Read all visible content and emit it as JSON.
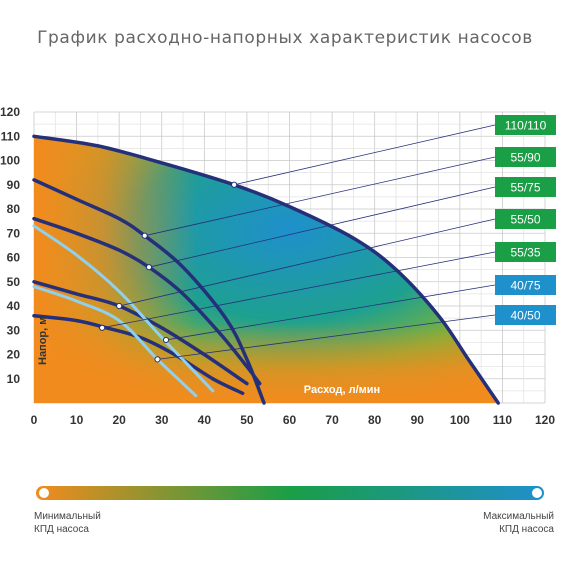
{
  "title": "График расходно-напорных характеристик насосов",
  "chart_data": {
    "type": "line",
    "xlabel": "Расход, л/мин",
    "ylabel": "Напор, м",
    "xlim": [
      0,
      120
    ],
    "ylim": [
      0,
      120
    ],
    "x_ticks": [
      "0",
      "10",
      "20",
      "30",
      "40",
      "50",
      "60",
      "70",
      "80",
      "90",
      "100",
      "110",
      "120"
    ],
    "y_ticks": [
      "10",
      "20",
      "30",
      "40",
      "50",
      "60",
      "70",
      "80",
      "90",
      "100",
      "110",
      "120"
    ],
    "grid": true,
    "series": [
      {
        "name": "110/110",
        "color": "#1a9e46",
        "points": [
          [
            0,
            110
          ],
          [
            15,
            106
          ],
          [
            30,
            99
          ],
          [
            47,
            90
          ],
          [
            60,
            81
          ],
          [
            75,
            68
          ],
          [
            85,
            55
          ],
          [
            95,
            36
          ],
          [
            102,
            18
          ],
          [
            109,
            0
          ]
        ]
      },
      {
        "name": "55/90",
        "color": "#1a9e46",
        "points": [
          [
            0,
            92
          ],
          [
            10,
            84
          ],
          [
            20,
            76
          ],
          [
            26,
            69
          ],
          [
            35,
            56
          ],
          [
            45,
            35
          ],
          [
            50,
            18
          ],
          [
            54,
            0
          ]
        ]
      },
      {
        "name": "55/75",
        "color": "#1a9e46",
        "points": [
          [
            0,
            76
          ],
          [
            10,
            70
          ],
          [
            20,
            63
          ],
          [
            27,
            56
          ],
          [
            35,
            45
          ],
          [
            44,
            28
          ],
          [
            50,
            15
          ],
          [
            53,
            8
          ]
        ]
      },
      {
        "name": "55/50",
        "color": "#1a9e46",
        "points": [
          [
            0,
            50
          ],
          [
            10,
            45
          ],
          [
            20,
            40
          ],
          [
            30,
            31
          ],
          [
            40,
            20
          ],
          [
            50,
            8
          ]
        ]
      },
      {
        "name": "55/35",
        "color": "#1a9e46",
        "points": [
          [
            0,
            36
          ],
          [
            10,
            34
          ],
          [
            17,
            31
          ],
          [
            25,
            27
          ],
          [
            33,
            20
          ],
          [
            42,
            10
          ],
          [
            49,
            4
          ]
        ]
      },
      {
        "name": "40/75",
        "color": "#1e90cc",
        "points": [
          [
            0,
            73
          ],
          [
            10,
            61
          ],
          [
            20,
            46
          ],
          [
            30,
            27
          ],
          [
            36,
            16
          ],
          [
            42,
            5
          ]
        ]
      },
      {
        "name": "40/50",
        "color": "#1e90cc",
        "points": [
          [
            0,
            48
          ],
          [
            10,
            42
          ],
          [
            20,
            34
          ],
          [
            29,
            18
          ],
          [
            35,
            8
          ],
          [
            38,
            3
          ]
        ]
      }
    ],
    "efficiency_scale": {
      "min_label": "Минимальный КПД насоса",
      "max_label": "Максимальный КПД насоса",
      "colors": [
        "#f28b1e",
        "#1a9e46",
        "#1e90cc"
      ]
    }
  }
}
